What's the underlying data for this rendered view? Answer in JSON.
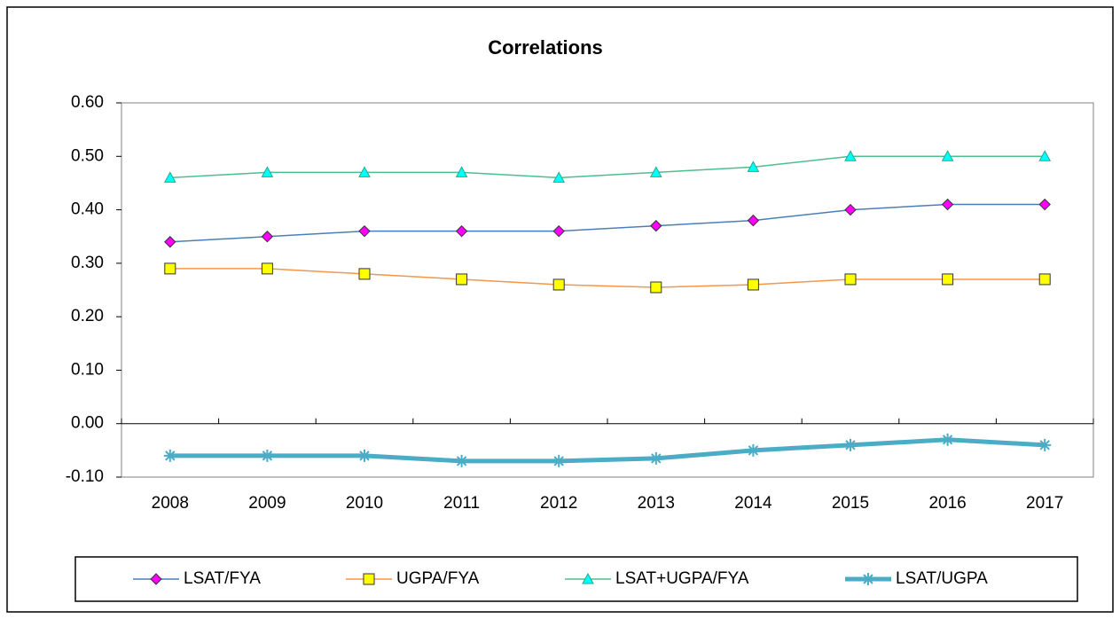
{
  "chart_data": {
    "type": "line",
    "title": "Correlations",
    "categories": [
      "2008",
      "2009",
      "2010",
      "2011",
      "2012",
      "2013",
      "2014",
      "2015",
      "2016",
      "2017"
    ],
    "ylim": [
      -0.1,
      0.6
    ],
    "yticks": [
      {
        "value": 0.6,
        "label": "0.60"
      },
      {
        "value": 0.5,
        "label": "0.50"
      },
      {
        "value": 0.4,
        "label": "0.40"
      },
      {
        "value": 0.3,
        "label": "0.30"
      },
      {
        "value": 0.2,
        "label": "0.20"
      },
      {
        "value": 0.1,
        "label": "0.10"
      },
      {
        "value": 0,
        "label": "0.00"
      },
      {
        "value": -0.1,
        "label": "-0.10"
      }
    ],
    "legend": "bottom",
    "series": [
      {
        "name": "LSAT/FYA",
        "color": "#4a7ebb",
        "marker": "diamond",
        "marker_color": "#ff00ff",
        "values": [
          0.34,
          0.35,
          0.36,
          0.36,
          0.36,
          0.37,
          0.38,
          0.4,
          0.41,
          0.41
        ]
      },
      {
        "name": "UGPA/FYA",
        "color": "#f79646",
        "marker": "square",
        "marker_color": "#ffff00",
        "values": [
          0.29,
          0.29,
          0.28,
          0.27,
          0.26,
          0.255,
          0.26,
          0.27,
          0.27,
          0.27
        ]
      },
      {
        "name": "LSAT+UGPA/FYA",
        "color": "#4bbf8f",
        "marker": "triangle",
        "marker_color": "#00ffff",
        "values": [
          0.46,
          0.47,
          0.47,
          0.47,
          0.46,
          0.47,
          0.48,
          0.5,
          0.5,
          0.5
        ]
      },
      {
        "name": "LSAT/UGPA",
        "color": "#4bacc6",
        "marker": "star",
        "marker_color": "#4bacc6",
        "width": 5,
        "values": [
          -0.06,
          -0.06,
          -0.06,
          -0.07,
          -0.07,
          -0.065,
          -0.05,
          -0.04,
          -0.03,
          -0.04
        ]
      }
    ]
  }
}
